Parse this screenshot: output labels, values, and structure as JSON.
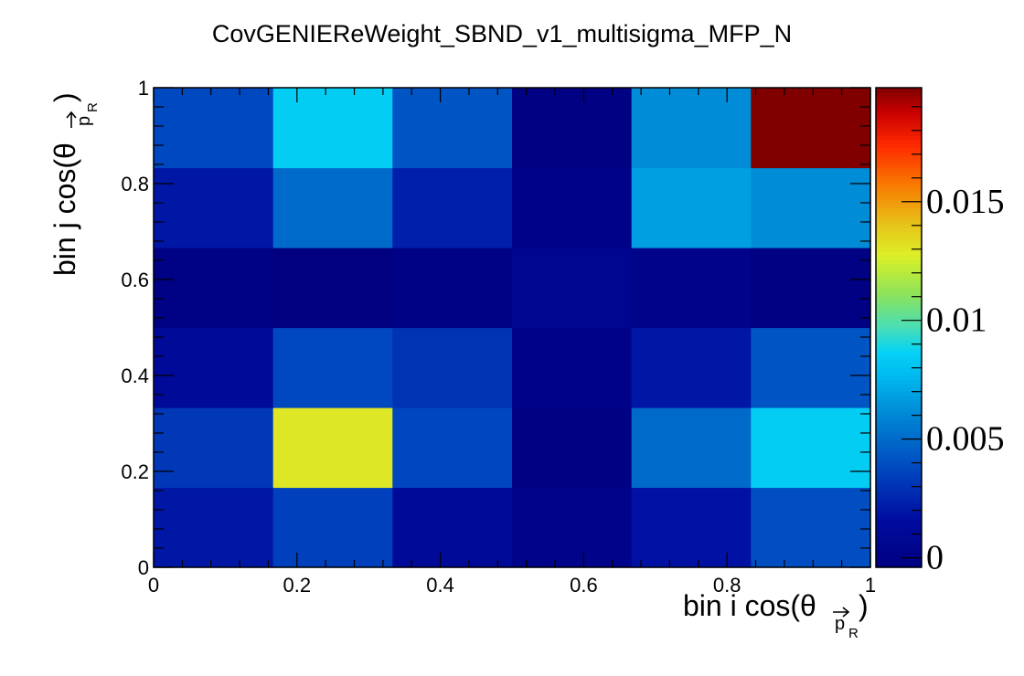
{
  "chart_data": {
    "type": "heatmap",
    "title": "CovGENIEReWeight_SBND_v1_multisigma_MFP_N",
    "xlabel": {
      "main": "bin i cos(θ",
      "sub": "p",
      "subsub": "R",
      "close": ")"
    },
    "ylabel": {
      "main": "bin j cos(θ",
      "sub": "p",
      "subsub": "R",
      "close": ")"
    },
    "xlim": [
      0,
      1
    ],
    "ylim": [
      0,
      1
    ],
    "x_edges": [
      0,
      0.1667,
      0.3333,
      0.5,
      0.6667,
      0.8333,
      1
    ],
    "y_edges": [
      0,
      0.1667,
      0.3333,
      0.5,
      0.6667,
      0.8333,
      1
    ],
    "x_ticks": [
      {
        "value": 0,
        "label": "0"
      },
      {
        "value": 0.2,
        "label": "0.2"
      },
      {
        "value": 0.4,
        "label": "0.4"
      },
      {
        "value": 0.6,
        "label": "0.6"
      },
      {
        "value": 0.8,
        "label": "0.8"
      },
      {
        "value": 1,
        "label": "1"
      }
    ],
    "y_ticks": [
      {
        "value": 0,
        "label": "0"
      },
      {
        "value": 0.2,
        "label": "0.2"
      },
      {
        "value": 0.4,
        "label": "0.4"
      },
      {
        "value": 0.6,
        "label": "0.6"
      },
      {
        "value": 0.8,
        "label": "0.8"
      },
      {
        "value": 1,
        "label": "1"
      }
    ],
    "z_range": [
      -0.0004,
      0.0198
    ],
    "colorbar_ticks": [
      {
        "value": 0,
        "label": "0"
      },
      {
        "value": 0.005,
        "label": "0.005"
      },
      {
        "value": 0.01,
        "label": "0.01"
      },
      {
        "value": 0.015,
        "label": "0.015"
      }
    ],
    "colorscale": "rainbow (dark blue to dark red)",
    "values_rows_bottom_to_top": [
      [
        0.002,
        0.0035,
        0.0012,
        0.0002,
        0.0018,
        0.004
      ],
      [
        0.0032,
        0.013,
        0.0037,
        -0.0002,
        0.005,
        0.0085
      ],
      [
        0.0012,
        0.0038,
        0.003,
        0.0001,
        0.002,
        0.0042
      ],
      [
        -0.0001,
        -0.0004,
        0.0,
        0.0006,
        0.0002,
        -0.0002
      ],
      [
        0.002,
        0.005,
        0.0023,
        0.0001,
        0.0068,
        0.0062
      ],
      [
        0.0038,
        0.0085,
        0.0042,
        -0.0002,
        0.0062,
        0.0198
      ]
    ]
  }
}
